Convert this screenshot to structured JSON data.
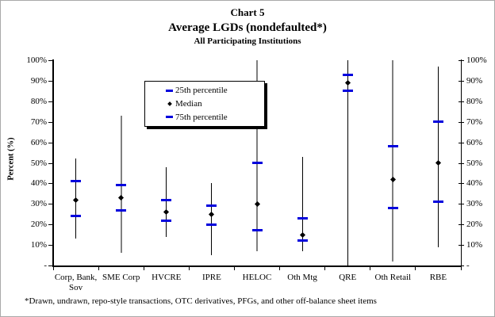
{
  "title": "Chart 5",
  "subtitle": "Average LGDs (nondefaulted*)",
  "subtitle2": "All Participating Institutions",
  "footnote": "*Drawn, undrawn, repo-style transactions, OTC derivatives, PFGs, and other off-balance sheet items",
  "colors": {
    "percentile_marker": "#0000dd",
    "median_marker": "#000000",
    "thin_whisker": "#000000",
    "thick_whisker": "#808080"
  },
  "legend": {
    "position": "inside-top-left-of-plot",
    "items": [
      {
        "label": "25th percentile",
        "marker": "dash",
        "color": "#0000dd"
      },
      {
        "label": "Median",
        "marker": "dot",
        "color": "#000000"
      },
      {
        "label": "75th percentile",
        "marker": "dash",
        "color": "#0000dd"
      }
    ]
  },
  "y_axis": {
    "label": "Percent (%)",
    "tick_labels_top_to_bottom": [
      "100%",
      "90%",
      "80%",
      "70%",
      "60%",
      "50%",
      "40%",
      "30%",
      "20%",
      "10%",
      "-"
    ],
    "min": 0,
    "max": 100,
    "step": 10,
    "mirrored_right_axis": true,
    "grid": false
  },
  "chart_data": {
    "type": "scatter",
    "subtype": "percentile-range-whisker",
    "title": "Chart 5 — Average LGDs (nondefaulted*) — All Participating Institutions",
    "xlabel": "",
    "ylabel": "Percent (%)",
    "ylim": [
      0,
      100
    ],
    "categories": [
      "Corp, Bank,\nSov",
      "SME Corp",
      "HVCRE",
      "IPRE",
      "HELOC",
      "Oth Mtg",
      "QRE",
      "Oth Retail",
      "RBE"
    ],
    "series": [
      {
        "name": "whisker_min",
        "values": [
          13,
          6,
          14,
          5,
          7,
          7,
          0,
          2,
          9
        ]
      },
      {
        "name": "25th percentile",
        "values": [
          24,
          27,
          22,
          20,
          17,
          12,
          85,
          28,
          31
        ]
      },
      {
        "name": "Median",
        "values": [
          32,
          33,
          26,
          25,
          30,
          15,
          89,
          42,
          50
        ]
      },
      {
        "name": "75th percentile",
        "values": [
          41,
          39,
          32,
          29,
          50,
          23,
          93,
          58,
          70
        ]
      },
      {
        "name": "whisker_max",
        "values": [
          52,
          73,
          48,
          40,
          100,
          53,
          100,
          100,
          97
        ]
      }
    ],
    "whisker_line_style_per_category": [
      {
        "color": "#000000",
        "width": 1
      },
      {
        "color": "#808080",
        "width": 2
      },
      {
        "color": "#000000",
        "width": 1
      },
      {
        "color": "#000000",
        "width": 1
      },
      {
        "color": "#808080",
        "width": 2
      },
      {
        "color": "#000000",
        "width": 1
      },
      {
        "color": "#000000",
        "width": 1
      },
      {
        "color": "#808080",
        "width": 2
      },
      {
        "color": "#000000",
        "width": 1
      }
    ]
  }
}
